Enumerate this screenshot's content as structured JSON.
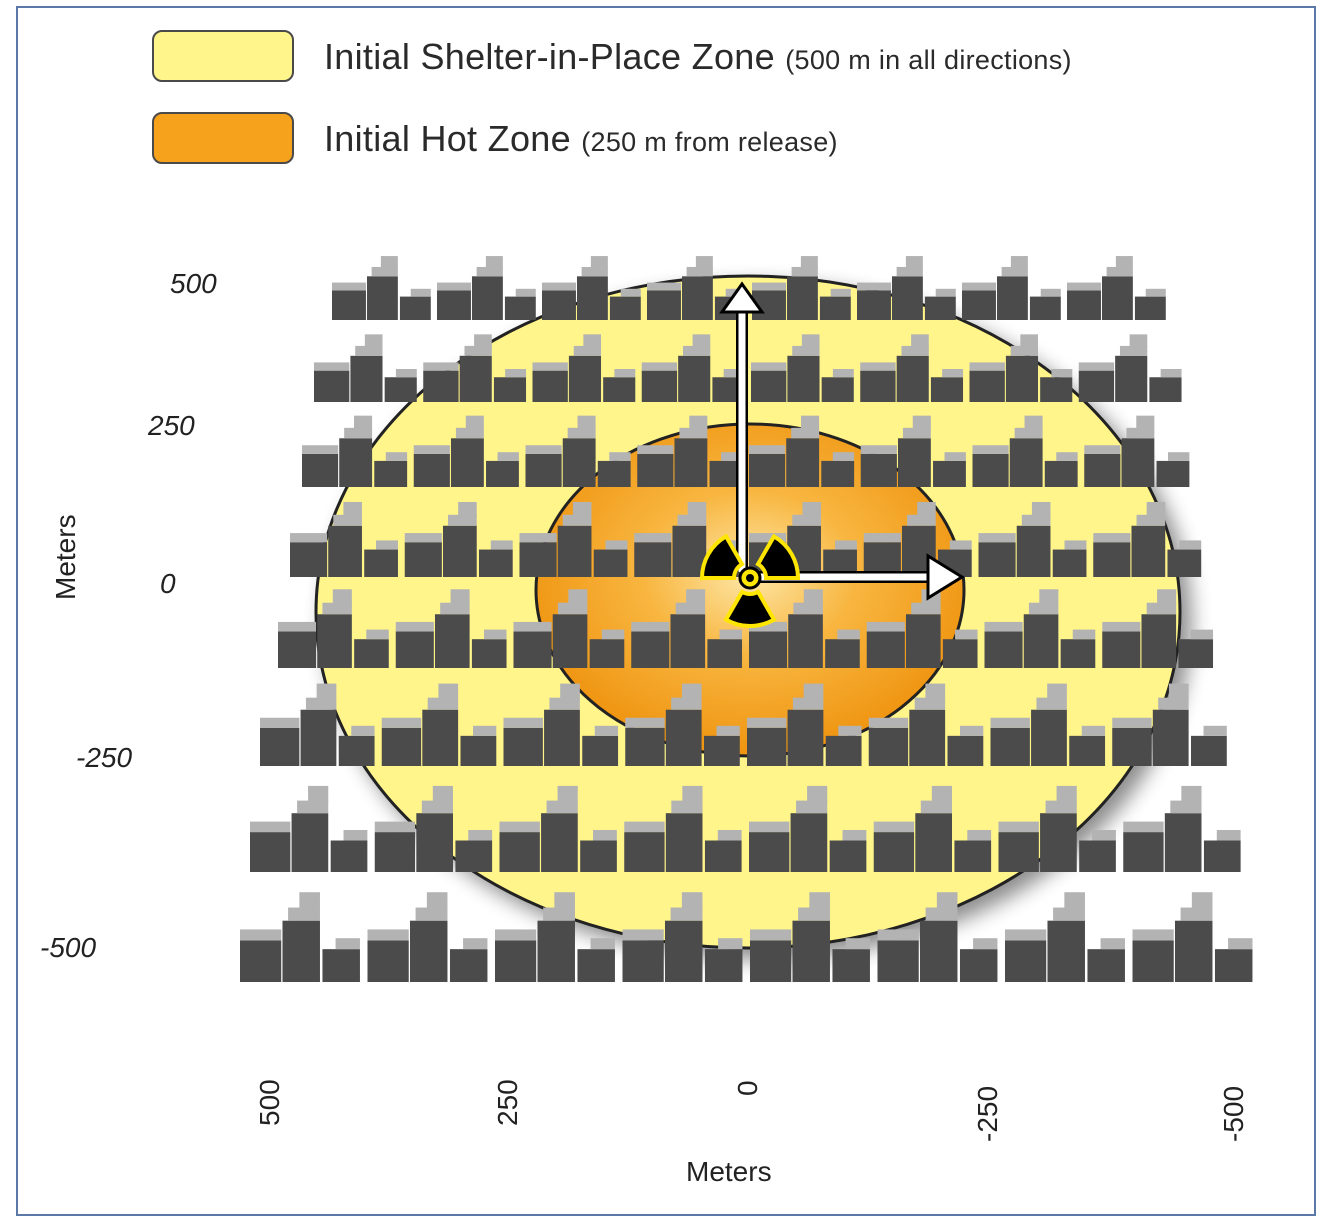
{
  "legend": {
    "shelter_label": "Initial Shelter-in-Place Zone",
    "shelter_detail": "(500 m in all directions)",
    "shelter_color": "#fff58a",
    "hot_label": "Initial Hot Zone",
    "hot_detail": "(250 m from release)",
    "hot_color": "#f7a21c"
  },
  "axes": {
    "y_title": "Meters",
    "x_title": "Meters",
    "y_ticks": [
      "500",
      "250",
      "0",
      "-250",
      "-500"
    ],
    "x_ticks": [
      "500",
      "250",
      "0",
      "-250",
      "-500"
    ]
  },
  "zones": {
    "shelter_radius_m": 500,
    "hot_radius_m": 250
  },
  "release_icon": "radiation-trefoil-icon",
  "building_icon": "building-cluster-icon",
  "building_color_dark": "#4b4b4b",
  "building_color_light": "#b3b3b3"
}
